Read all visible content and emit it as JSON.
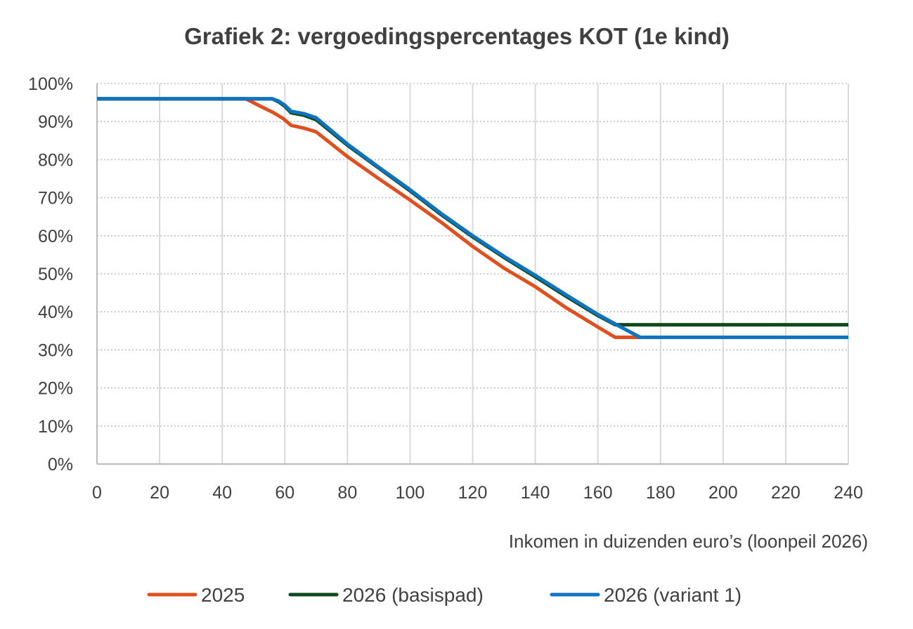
{
  "chart_data": {
    "type": "line",
    "title": "Grafiek 2: vergoedingspercentages KOT (1e kind)",
    "xlabel": "Inkomen in duizenden euro’s (loonpeil 2026)",
    "ylabel": "",
    "xlim": [
      0,
      240
    ],
    "ylim": [
      0,
      100
    ],
    "x_ticks": [
      "0",
      "20",
      "40",
      "60",
      "80",
      "100",
      "120",
      "140",
      "160",
      "180",
      "200",
      "220",
      "240"
    ],
    "x_tick_values": [
      0,
      20,
      40,
      60,
      80,
      100,
      120,
      140,
      160,
      180,
      200,
      220,
      240
    ],
    "y_ticks": [
      "0%",
      "10%",
      "20%",
      "30%",
      "40%",
      "50%",
      "60%",
      "70%",
      "80%",
      "90%",
      "100%"
    ],
    "y_tick_values": [
      0,
      10,
      20,
      30,
      40,
      50,
      60,
      70,
      80,
      90,
      100
    ],
    "grid": {
      "vertical": "solid",
      "horizontal": "dotted"
    },
    "legend_position": "bottom",
    "series": [
      {
        "name": "2025",
        "color": "#E04F1D",
        "x": [
          0,
          47.5,
          53,
          56,
          59.5,
          62,
          66,
          70,
          80,
          90,
          100,
          110,
          120,
          130,
          140,
          150,
          160,
          165.5,
          240
        ],
        "y": [
          96,
          96,
          93.7,
          92.5,
          90.8,
          89,
          88.3,
          87.3,
          80.8,
          75,
          69.4,
          63.5,
          57.2,
          51.5,
          46.6,
          41,
          36,
          33.3,
          33.3
        ]
      },
      {
        "name": "2026 (basispad)",
        "color": "#0E4A1C",
        "x": [
          0,
          56,
          58,
          60,
          62,
          66,
          70,
          80,
          90,
          100,
          110,
          120,
          130,
          140,
          150,
          160,
          165.5,
          240
        ],
        "y": [
          96,
          96,
          95.2,
          94,
          92.3,
          91.7,
          90.5,
          83.8,
          77.8,
          71.8,
          65.5,
          59.7,
          54.3,
          49.2,
          44,
          39,
          36.6,
          36.6
        ]
      },
      {
        "name": "2026 (variant 1)",
        "color": "#0E73C0",
        "x": [
          0,
          56,
          58,
          60,
          62,
          66,
          70,
          80,
          90,
          100,
          110,
          120,
          130,
          140,
          150,
          160,
          165.5,
          173.5,
          240
        ],
        "y": [
          96,
          96,
          95.4,
          94.3,
          92.7,
          92.1,
          91,
          84.1,
          78,
          72.1,
          65.8,
          60,
          54.6,
          49.6,
          44.4,
          39.3,
          36.8,
          33.3,
          33.3
        ]
      }
    ]
  }
}
